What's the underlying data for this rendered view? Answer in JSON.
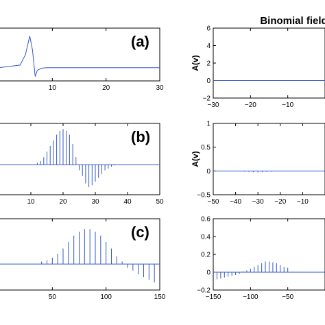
{
  "chart_data": [
    {
      "type": "line",
      "panel": "left-top",
      "label": "(a)",
      "xlim": [
        0,
        30
      ],
      "xticks": [
        10,
        20,
        30
      ],
      "yticks": [],
      "series": [
        {
          "x": [
            0,
            4,
            5,
            5.8,
            6.3,
            6.8,
            7.2,
            8,
            9,
            30
          ],
          "y": [
            0,
            0.3,
            1.5,
            3.6,
            2.0,
            -1.0,
            -0.3,
            -0.05,
            0,
            0
          ]
        }
      ]
    },
    {
      "type": "line",
      "panel": "left-middle",
      "label": "(b)",
      "xlim": [
        0,
        50
      ],
      "xticks": [
        10,
        20,
        30,
        40,
        50
      ],
      "yticks": [],
      "series": [
        {
          "peaks_x": [
            12,
            13,
            14,
            15,
            16,
            17,
            18,
            19,
            20,
            21,
            22,
            23,
            24,
            25,
            26,
            27,
            28,
            29,
            30,
            31,
            32,
            33,
            34,
            35,
            36
          ],
          "peaks_y": [
            0.05,
            0.1,
            0.2,
            0.35,
            0.5,
            0.65,
            0.8,
            0.9,
            0.95,
            0.9,
            0.8,
            0.55,
            0.2,
            -0.15,
            -0.3,
            -0.5,
            -0.6,
            -0.55,
            -0.45,
            -0.35,
            -0.25,
            -0.15,
            -0.1,
            -0.05,
            -0.02
          ]
        }
      ]
    },
    {
      "type": "line",
      "panel": "left-bottom",
      "label": "(c)",
      "xlim": [
        0,
        150
      ],
      "xticks": [
        50,
        100,
        150
      ],
      "yticks": [],
      "series": [
        {
          "peaks_x": [
            40,
            45,
            50,
            55,
            60,
            65,
            70,
            75,
            80,
            85,
            90,
            95,
            100,
            105,
            110,
            115,
            120,
            125,
            130,
            135,
            140,
            145
          ],
          "peaks_y": [
            0.02,
            0.03,
            0.05,
            0.08,
            0.12,
            0.17,
            0.22,
            0.25,
            0.27,
            0.27,
            0.25,
            0.22,
            0.17,
            0.12,
            0.06,
            0.02,
            -0.03,
            -0.05,
            -0.08,
            -0.1,
            -0.12,
            -0.14
          ]
        }
      ]
    },
    {
      "type": "line",
      "panel": "right-top",
      "xlim": [
        -30,
        0
      ],
      "ylim": [
        -2,
        6
      ],
      "title": "Binomial field",
      "ylabel": "A(v)",
      "xticks": [
        -30,
        -20,
        -10
      ],
      "xtick_labels": [
        "−30",
        "−20",
        "−10"
      ],
      "yticks": [
        -2,
        0,
        2,
        4,
        6
      ],
      "ytick_labels": [
        "−2",
        "0",
        "2",
        "4",
        "6"
      ],
      "series": [
        {
          "x": [
            -30,
            0
          ],
          "y": [
            0,
            0
          ]
        }
      ]
    },
    {
      "type": "line",
      "panel": "right-middle",
      "xlim": [
        -50,
        0
      ],
      "ylim": [
        -0.5,
        1
      ],
      "ylabel": "A(v)",
      "xticks": [
        -50,
        -40,
        -30,
        -20,
        -10
      ],
      "xtick_labels": [
        "−50",
        "−40",
        "−30",
        "−20",
        "−10"
      ],
      "yticks": [
        -0.5,
        0,
        0.5,
        1
      ],
      "ytick_labels": [
        "−0.5",
        "0",
        "0.5",
        "1"
      ],
      "series": [
        {
          "peaks_x": [
            -40,
            -38,
            -36,
            -34,
            -32,
            -30,
            -28,
            -26,
            -24,
            -22,
            -20
          ],
          "peaks_y": [
            -0.005,
            -0.01,
            -0.015,
            -0.02,
            -0.025,
            -0.03,
            -0.025,
            -0.02,
            -0.015,
            -0.01,
            -0.005
          ]
        }
      ]
    },
    {
      "type": "line",
      "panel": "right-bottom",
      "xlim": [
        -150,
        0
      ],
      "ylim": [
        -0.2,
        0.6
      ],
      "xticks": [
        -150,
        -100,
        -50
      ],
      "xtick_labels": [
        "−150",
        "−100",
        "−50"
      ],
      "yticks": [
        -0.2,
        0,
        0.2,
        0.4,
        0.6
      ],
      "ytick_labels": [
        "−0.2",
        "0",
        "0.2",
        "0.4",
        "0.6"
      ],
      "series": [
        {
          "peaks_x": [
            -145,
            -140,
            -135,
            -130,
            -125,
            -120,
            -115,
            -110,
            -105,
            -100,
            -95,
            -90,
            -85,
            -80,
            -75,
            -70,
            -65,
            -60,
            -55,
            -50
          ],
          "peaks_y": [
            -0.08,
            -0.07,
            -0.06,
            -0.05,
            -0.04,
            -0.03,
            -0.02,
            0.01,
            0.02,
            0.04,
            0.06,
            0.08,
            0.1,
            0.12,
            0.12,
            0.11,
            0.1,
            0.08,
            0.06,
            0.05
          ]
        }
      ]
    }
  ]
}
